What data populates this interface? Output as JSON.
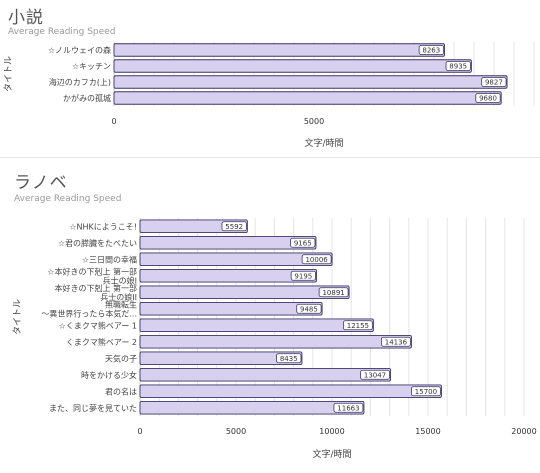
{
  "charts": [
    {
      "title": "小説",
      "subtitle": "Average Reading Speed"
    },
    {
      "title": "ラノベ",
      "subtitle": "Average Reading Speed"
    }
  ],
  "chart_data": [
    {
      "type": "bar",
      "orientation": "horizontal",
      "title": "小説",
      "subtitle": "Average Reading Speed",
      "xlabel": "文字/時間",
      "ylabel": "タイトル",
      "xlim": [
        0,
        10500
      ],
      "xticks": [
        0,
        5000
      ],
      "grid": true,
      "bar_color": "#d7d0ee",
      "bar_border": "#3d3466",
      "categories": [
        "☆ノルウェイの森",
        "☆キッチン",
        "海辺のカフカ(上)",
        "かがみの孤城"
      ],
      "values": [
        8263,
        8935,
        9827,
        9680
      ]
    },
    {
      "type": "bar",
      "orientation": "horizontal",
      "title": "ラノベ",
      "subtitle": "Average Reading Speed",
      "xlabel": "文字/時間",
      "ylabel": "タイトル",
      "xlim": [
        0,
        20000
      ],
      "xticks": [
        0,
        5000,
        10000,
        15000,
        20000
      ],
      "grid": true,
      "bar_color": "#d7d0ee",
      "bar_border": "#3d3466",
      "categories": [
        [
          "☆NHKにようこそ!"
        ],
        [
          "☆君の膵臓をたべたい"
        ],
        [
          "☆三日間の幸福"
        ],
        [
          "☆本好きの下剋上 第一部",
          "兵士の娘I"
        ],
        [
          "本好きの下剋上 第一部",
          "兵士の娘II"
        ],
        [
          "無職転生",
          "～異世界行ったら本気だ..."
        ],
        [
          "☆くまクマ熊ベアー 1"
        ],
        [
          "くまクマ熊ベアー 2"
        ],
        [
          "天気の子"
        ],
        [
          "時をかける少女"
        ],
        [
          "君の名は"
        ],
        [
          "また、同じ夢を見ていた"
        ]
      ],
      "values": [
        5592,
        9165,
        10006,
        9195,
        10891,
        9485,
        12155,
        14136,
        8435,
        13047,
        15700,
        11663
      ]
    }
  ]
}
